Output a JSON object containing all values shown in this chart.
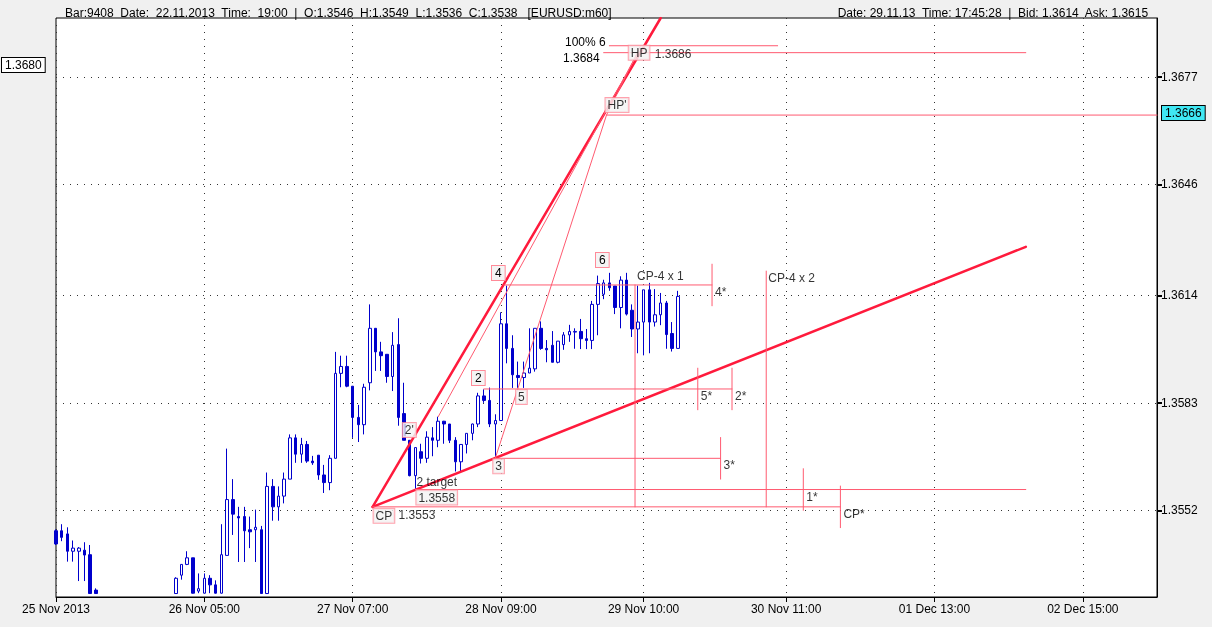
{
  "chart_data": {
    "type": "candlestick",
    "title": "Bar:9408  Date:  22.11.2013  Time:  19:00  |  O:1.3546  H:1.3549  L:1.3536  C:1.3538   [EURUSD:m60]",
    "subtitle": "Date: 29.11.13  Time: 17:45:28  |  Bid: 1.3614  Ask: 1.3615",
    "xlim": [
      "2013-11-25T03:00",
      "2013-12-03T04:00"
    ],
    "xticks": [
      {
        "value": "2013-11-25T03:00",
        "label": "25 Nov 2013"
      },
      {
        "value": "2013-11-26T05:00",
        "label": "26 Nov 05:00"
      },
      {
        "value": "2013-11-27T07:00",
        "label": "27 Nov 07:00"
      },
      {
        "value": "2013-11-28T09:00",
        "label": "28 Nov 09:00"
      },
      {
        "value": "2013-11-29T10:00",
        "label": "29 Nov 10:00"
      },
      {
        "value": "2013-11-30T11:00",
        "label": "30 Nov 11:00"
      },
      {
        "value": "2013-12-01T13:00",
        "label": "01 Dec 13:00"
      },
      {
        "value": "2013-12-02T15:00",
        "label": "02 Dec 15:00"
      }
    ],
    "ylim": [
      1.3527,
      1.3694
    ],
    "yticks": [
      1.3552,
      1.3583,
      1.3614,
      1.3646,
      1.3677
    ],
    "grid": true,
    "series": [
      {
        "type": "candlestick",
        "color": "#0000cc",
        "x": [
          "2013-11-25T03:00",
          "2013-11-25T04:00",
          "2013-11-25T05:00",
          "2013-11-25T06:00",
          "2013-11-25T07:00",
          "2013-11-25T08:00",
          "2013-11-25T09:00",
          "2013-11-25T10:00",
          "2013-11-26T00:00",
          "2013-11-26T01:00",
          "2013-11-26T02:00",
          "2013-11-26T03:00",
          "2013-11-26T04:00",
          "2013-11-26T05:00",
          "2013-11-26T06:00",
          "2013-11-26T07:00",
          "2013-11-26T08:00",
          "2013-11-26T09:00",
          "2013-11-26T10:00",
          "2013-11-26T11:00",
          "2013-11-26T12:00",
          "2013-11-26T13:00",
          "2013-11-26T14:00",
          "2013-11-26T15:00",
          "2013-11-26T16:00",
          "2013-11-26T17:00",
          "2013-11-26T18:00",
          "2013-11-26T19:00",
          "2013-11-26T20:00",
          "2013-11-26T21:00",
          "2013-11-26T22:00",
          "2013-11-26T23:00",
          "2013-11-27T00:00",
          "2013-11-27T01:00",
          "2013-11-27T02:00",
          "2013-11-27T03:00",
          "2013-11-27T04:00",
          "2013-11-27T05:00",
          "2013-11-27T06:00",
          "2013-11-27T07:00",
          "2013-11-27T08:00",
          "2013-11-27T09:00",
          "2013-11-27T10:00",
          "2013-11-27T11:00",
          "2013-11-27T12:00",
          "2013-11-27T13:00",
          "2013-11-27T14:00",
          "2013-11-27T15:00",
          "2013-11-27T16:00",
          "2013-11-27T17:00",
          "2013-11-27T18:00",
          "2013-11-27T19:00",
          "2013-11-27T20:00",
          "2013-11-27T21:00",
          "2013-11-27T22:00",
          "2013-11-27T23:00",
          "2013-11-28T00:00",
          "2013-11-28T01:00",
          "2013-11-28T02:00",
          "2013-11-28T03:00",
          "2013-11-28T04:00",
          "2013-11-28T05:00",
          "2013-11-28T06:00",
          "2013-11-28T07:00",
          "2013-11-28T08:00",
          "2013-11-28T09:00",
          "2013-11-28T10:00",
          "2013-11-28T11:00",
          "2013-11-28T12:00",
          "2013-11-28T13:00",
          "2013-11-28T14:00",
          "2013-11-28T15:00",
          "2013-11-28T16:00",
          "2013-11-28T17:00",
          "2013-11-28T18:00",
          "2013-11-28T19:00",
          "2013-11-28T20:00",
          "2013-11-28T21:00",
          "2013-11-28T22:00",
          "2013-11-28T23:00",
          "2013-11-29T00:00",
          "2013-11-29T01:00",
          "2013-11-29T02:00",
          "2013-11-29T03:00",
          "2013-11-29T04:00",
          "2013-11-29T05:00",
          "2013-11-29T06:00",
          "2013-11-29T07:00",
          "2013-11-29T08:00",
          "2013-11-29T09:00",
          "2013-11-29T10:00",
          "2013-11-29T11:00",
          "2013-11-29T12:00",
          "2013-11-29T13:00",
          "2013-11-29T14:00",
          "2013-11-29T15:00",
          "2013-11-29T16:00"
        ],
        "ohlc": [
          [
            1.35461,
            1.35465,
            1.3542,
            1.35423
          ],
          [
            1.35461,
            1.3548,
            1.35431,
            1.35442
          ],
          [
            1.35452,
            1.35471,
            1.35372,
            1.35402
          ],
          [
            1.35402,
            1.35433,
            1.35372,
            1.35411
          ],
          [
            1.35402,
            1.35414,
            1.35316,
            1.35411
          ],
          [
            1.35405,
            1.35428,
            1.35316,
            1.35391
          ],
          [
            1.35392,
            1.3542,
            1.3528,
            1.3528
          ],
          [
            1.3529,
            1.35295,
            1.3528,
            1.3528
          ],
          [
            1.3528,
            1.35327,
            1.3528,
            1.35324
          ],
          [
            1.35333,
            1.35364,
            1.3532,
            1.35364
          ],
          [
            1.35364,
            1.35402,
            1.35362,
            1.35383
          ],
          [
            1.35383,
            1.35383,
            1.3528,
            1.35281
          ],
          [
            1.35287,
            1.35338,
            1.35281,
            1.35294
          ],
          [
            1.35281,
            1.35338,
            1.3528,
            1.35324
          ],
          [
            1.35324,
            1.35333,
            1.35281,
            1.35305
          ],
          [
            1.35305,
            1.35318,
            1.3528,
            1.35281
          ],
          [
            1.35281,
            1.3548,
            1.3528,
            1.35392
          ],
          [
            1.3539,
            1.35698,
            1.3539,
            1.35551
          ],
          [
            1.35551,
            1.3561,
            1.35449,
            1.35509
          ],
          [
            1.35502,
            1.3553,
            1.35371,
            1.35498
          ],
          [
            1.35502,
            1.3553,
            1.35371,
            1.35461
          ],
          [
            1.35464,
            1.35502,
            1.35411,
            1.35458
          ],
          [
            1.35464,
            1.35522,
            1.35371,
            1.35471
          ],
          [
            1.35464,
            1.35475,
            1.3528,
            1.3528
          ],
          [
            1.3528,
            1.35629,
            1.3528,
            1.35589
          ],
          [
            1.35589,
            1.3561,
            1.3549,
            1.3553
          ],
          [
            1.3553,
            1.35589,
            1.3549,
            1.35561
          ],
          [
            1.35561,
            1.35629,
            1.3554,
            1.3561
          ],
          [
            1.3561,
            1.35739,
            1.3561,
            1.35729
          ],
          [
            1.35729,
            1.35739,
            1.35657,
            1.35682
          ],
          [
            1.35682,
            1.35729,
            1.35657,
            1.3571
          ],
          [
            1.3571,
            1.3572,
            1.35657,
            1.35662
          ],
          [
            1.35662,
            1.35677,
            1.35651,
            1.35657
          ],
          [
            1.35679,
            1.35679,
            1.35608,
            1.35622
          ],
          [
            1.35622,
            1.35651,
            1.3557,
            1.356
          ],
          [
            1.356,
            1.35679,
            1.35578,
            1.3567
          ],
          [
            1.3567,
            1.35977,
            1.3567,
            1.35915
          ],
          [
            1.35915,
            1.35966,
            1.35875,
            1.35935
          ],
          [
            1.35935,
            1.35966,
            1.35875,
            1.35878
          ],
          [
            1.35878,
            1.35878,
            1.35729,
            1.35788
          ],
          [
            1.35788,
            1.35824,
            1.35717,
            1.35767
          ],
          [
            1.35767,
            1.35885,
            1.35739,
            1.35875
          ],
          [
            1.35888,
            1.36114,
            1.35866,
            1.36045
          ],
          [
            1.36045,
            1.36045,
            1.35922,
            1.35977
          ],
          [
            1.35977,
            1.36006,
            1.35922,
            1.35966
          ],
          [
            1.3597,
            1.3597,
            1.35888,
            1.35906
          ],
          [
            1.35906,
            1.36034,
            1.35864,
            1.35996
          ],
          [
            1.35998,
            1.36074,
            1.35764,
            1.35788
          ],
          [
            1.35799,
            1.35888,
            1.35722,
            1.35722
          ],
          [
            1.35722,
            1.35722,
            1.35618,
            1.3562
          ],
          [
            1.3562,
            1.35701,
            1.35582,
            1.35701
          ],
          [
            1.35689,
            1.35712,
            1.35655,
            1.3567
          ],
          [
            1.3567,
            1.35748,
            1.35657,
            1.35731
          ],
          [
            1.35729,
            1.3576,
            1.35676,
            1.35722
          ],
          [
            1.35722,
            1.3579,
            1.35702,
            1.35777
          ],
          [
            1.35777,
            1.35778,
            1.35712,
            1.35769
          ],
          [
            1.35769,
            1.35769,
            1.35714,
            1.35722
          ],
          [
            1.35722,
            1.35731,
            1.35632,
            1.3566
          ],
          [
            1.3566,
            1.3571,
            1.35632,
            1.3571
          ],
          [
            1.3571,
            1.35742,
            1.35684,
            1.35742
          ],
          [
            1.35742,
            1.3577,
            1.35722,
            1.35769
          ],
          [
            1.35769,
            1.35859,
            1.3576,
            1.3585
          ],
          [
            1.3585,
            1.35869,
            1.3583,
            1.35837
          ],
          [
            1.35837,
            1.35874,
            1.3576,
            1.35769
          ],
          [
            1.35769,
            1.35797,
            1.35674,
            1.35779
          ],
          [
            1.35779,
            1.36091,
            1.35779,
            1.36058
          ],
          [
            1.36058,
            1.36168,
            1.35944,
            1.35987
          ],
          [
            1.35987,
            1.36025,
            1.35873,
            1.35911
          ],
          [
            1.35909,
            1.35949,
            1.35873,
            1.35903
          ],
          [
            1.35903,
            1.35949,
            1.35873,
            1.35916
          ],
          [
            1.35916,
            1.36045,
            1.35916,
            1.3593
          ],
          [
            1.35928,
            1.36045,
            1.3592,
            1.36045
          ],
          [
            1.36045,
            1.36065,
            1.35983,
            1.35987
          ],
          [
            1.35987,
            1.36011,
            1.35947,
            1.35983
          ],
          [
            1.35996,
            1.36037,
            1.35947,
            1.35947
          ],
          [
            1.35947,
            1.36008,
            1.35944,
            1.36008
          ],
          [
            1.35998,
            1.36034,
            1.35983,
            1.36026
          ],
          [
            1.36026,
            1.36055,
            1.36006,
            1.36036
          ],
          [
            1.36034,
            1.36045,
            1.35986,
            1.36036
          ],
          [
            1.36036,
            1.36072,
            1.35985,
            1.36015
          ],
          [
            1.36015,
            1.36043,
            1.35985,
            1.3601
          ],
          [
            1.3601,
            1.36124,
            1.35985,
            1.36114
          ],
          [
            1.36114,
            1.36197,
            1.36025,
            1.36174
          ],
          [
            1.36143,
            1.36185,
            1.36129,
            1.36176
          ],
          [
            1.36176,
            1.36205,
            1.36153,
            1.36162
          ],
          [
            1.36167,
            1.36167,
            1.36086,
            1.36105
          ],
          [
            1.36105,
            1.36195,
            1.36045,
            1.36184
          ],
          [
            1.36184,
            1.36205,
            1.36082,
            1.36086
          ],
          [
            1.36097,
            1.36114,
            1.3602,
            1.36043
          ],
          [
            1.36043,
            1.36168,
            1.35973,
            1.36063
          ],
          [
            1.36063,
            1.36156,
            1.35967,
            1.36156
          ],
          [
            1.36156,
            1.36176,
            1.35973,
            1.36063
          ],
          [
            1.36063,
            1.36158,
            1.3605,
            1.36084
          ],
          [
            1.36084,
            1.36147,
            1.36054,
            1.36118
          ],
          [
            1.36118,
            1.36124,
            1.35986,
            1.36027
          ],
          [
            1.3603,
            1.36063,
            1.35978,
            1.35987
          ],
          [
            1.35987,
            1.36153,
            1.35987,
            1.36137
          ]
        ]
      },
      {
        "type": "line",
        "color": "#ff1a3c",
        "x": [
          "2013-11-27T10:30",
          "2013-11-29T13:00"
        ],
        "values": [
          1.3553,
          1.3694
        ]
      },
      {
        "type": "line",
        "color": "#ff1a3c",
        "x": [
          "2013-11-27T10:30",
          "2013-12-02T05:00"
        ],
        "values": [
          1.3553,
          1.3628
        ]
      },
      {
        "type": "line",
        "color": "#ff5a70",
        "x": [
          "2013-11-27T22:00",
          "2013-11-29T09:00"
        ],
        "values": [
          1.3579,
          1.3684
        ]
      },
      {
        "type": "line",
        "color": "#ff5a70",
        "x": [
          "2013-11-28T08:00",
          "2013-11-29T03:30",
          "2013-11-29T09:30"
        ],
        "values": [
          1.3567,
          1.3666,
          1.3686
        ]
      },
      {
        "type": "line",
        "color": "#ff5a70",
        "x": [
          "2013-11-28T09:30",
          "2013-11-29T22:00"
        ],
        "values": [
          1.3617,
          1.3617
        ]
      },
      {
        "type": "line",
        "color": "#ff5a70",
        "x": [
          "2013-11-28T06:00",
          "2013-11-30T01:30"
        ],
        "values": [
          1.3587,
          1.3587
        ]
      },
      {
        "type": "line",
        "color": "#ff5a70",
        "x": [
          "2013-11-28T08:00",
          "2013-11-29T23:30"
        ],
        "values": [
          1.3567,
          1.3567
        ]
      },
      {
        "type": "line",
        "color": "#ff5a70",
        "x": [
          "2013-11-27T18:00",
          "2013-12-02T05:00"
        ],
        "values": [
          1.3558,
          1.3558
        ]
      },
      {
        "type": "line",
        "color": "#ff5a70",
        "x": [
          "2013-11-27T10:30",
          "2013-11-30T20:30"
        ],
        "values": [
          1.3553,
          1.3553
        ]
      },
      {
        "type": "line",
        "color": "#ff5a70",
        "x": [
          "2013-11-29T03:30",
          "2013-12-03T04:00"
        ],
        "values": [
          1.3666,
          1.3666
        ]
      },
      {
        "type": "line",
        "color": "#ff5a70",
        "x": [
          "2013-11-29T03:00",
          "2013-12-02T05:00"
        ],
        "values": [
          1.3684,
          1.3684
        ]
      },
      {
        "type": "line",
        "color": "#ff5a70",
        "x": [
          "2013-11-29T04:00",
          "2013-11-30T09:30"
        ],
        "values": [
          1.3686,
          1.3686
        ]
      },
      {
        "type": "line",
        "color": "#ff5a70",
        "x": [
          "2013-11-29T08:30",
          "2013-11-29T08:30"
        ],
        "values": [
          1.3553,
          1.3617
        ]
      },
      {
        "type": "line",
        "color": "#ff5a70",
        "x": [
          "2013-11-30T07:30",
          "2013-11-30T07:30"
        ],
        "values": [
          1.3553,
          1.3621
        ]
      },
      {
        "type": "line",
        "color": "#ff5a70",
        "x": [
          "2013-11-29T22:00",
          "2013-11-29T22:00"
        ],
        "values": [
          1.3611,
          1.3623
        ]
      },
      {
        "type": "line",
        "color": "#ff5a70",
        "x": [
          "2013-11-29T19:30",
          "2013-11-29T19:30"
        ],
        "values": [
          1.3581,
          1.3593
        ]
      },
      {
        "type": "line",
        "color": "#ff5a70",
        "x": [
          "2013-11-30T01:30",
          "2013-11-30T01:30"
        ],
        "values": [
          1.3581,
          1.3593
        ]
      },
      {
        "type": "line",
        "color": "#ff5a70",
        "x": [
          "2013-11-29T23:30",
          "2013-11-29T23:30"
        ],
        "values": [
          1.3561,
          1.3573
        ]
      },
      {
        "type": "line",
        "color": "#ff5a70",
        "x": [
          "2013-11-30T14:00",
          "2013-11-30T14:00"
        ],
        "values": [
          1.3552,
          1.3564
        ]
      },
      {
        "type": "line",
        "color": "#ff5a70",
        "x": [
          "2013-11-30T20:30",
          "2013-11-30T20:30"
        ],
        "values": [
          1.3547,
          1.3559
        ]
      }
    ],
    "annotations": [
      {
        "text": "CP",
        "x": "2013-11-27T10:30",
        "y": 1.3553
      },
      {
        "text": "1.3553",
        "x": "2013-11-27T10:30",
        "y": 1.3553
      },
      {
        "text": "2'",
        "x": "2013-11-27T16:30",
        "y": 1.3572
      },
      "2",
      "4",
      "6",
      {
        "text": "3",
        "x": "2013-11-28T08:00",
        "y": 1.3567
      },
      {
        "text": "5",
        "x": "2013-11-28T12:00",
        "y": 1.3587
      },
      {
        "text": "HP'",
        "x": "2013-11-29T03:30",
        "y": 1.3666
      },
      {
        "text": "HP",
        "x": "2013-11-29T09:30",
        "y": 1.3686
      },
      "100% 6",
      "1.3684",
      {
        "text": "1.3686",
        "x": "2013-11-29T09:30",
        "y": 1.3686
      },
      {
        "text": "2 target",
        "x": "2013-11-27T18:00",
        "y": 1.3558
      },
      {
        "text": "1.3558",
        "x": "2013-11-27T18:00",
        "y": 1.3558
      },
      {
        "text": "CP-4 x 1",
        "x": "2013-11-29T08:30",
        "y": 1.3617
      },
      {
        "text": "CP-4 x 2",
        "x": "2013-11-30T07:30",
        "y": 1.3621
      },
      {
        "text": "4*",
        "x": "2013-11-29T22:00",
        "y": 1.3617
      },
      {
        "text": "5*",
        "x": "2013-11-29T19:30",
        "y": 1.3587
      },
      {
        "text": "2*",
        "x": "2013-11-30T01:30",
        "y": 1.3587
      },
      {
        "text": "3*",
        "x": "2013-11-29T23:30",
        "y": 1.3567
      },
      {
        "text": "1*",
        "x": "2013-11-30T14:00",
        "y": 1.3558
      },
      {
        "text": "CP*",
        "x": "2013-11-30T20:30",
        "y": 1.3553
      },
      "1.3680",
      "1.3666"
    ]
  }
}
